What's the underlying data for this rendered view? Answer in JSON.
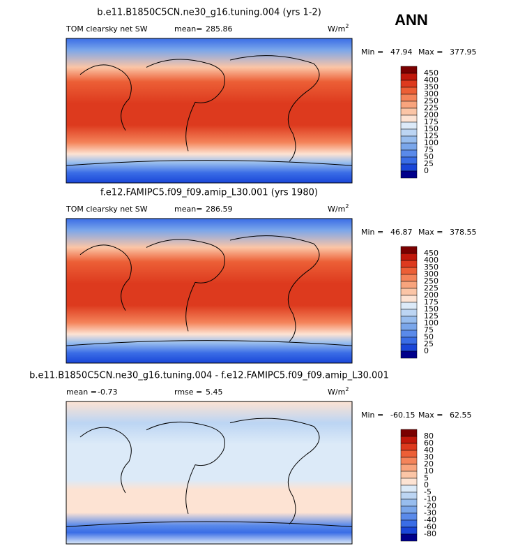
{
  "header": {
    "season": "ANN"
  },
  "panels": [
    {
      "title": "b.e11.B1850C5CN.ne30_g16.tuning.004 (yrs 1-2)",
      "variable": "TOM clearsky net SW",
      "stats": [
        {
          "label": "mean=",
          "value": "285.86"
        }
      ],
      "units": "W/m",
      "units_sup": "2",
      "min_label": "Min =",
      "min": "47.94",
      "max_label": "Max =",
      "max": "377.95",
      "colorbar": {
        "labels": [
          "450",
          "400",
          "350",
          "300",
          "250",
          "225",
          "200",
          "175",
          "150",
          "125",
          "100",
          "75",
          "50",
          "25",
          "0"
        ],
        "colors": [
          "#7a0000",
          "#c0180b",
          "#dd3a1e",
          "#ec5f36",
          "#f4845a",
          "#f8a47d",
          "#fbc5a6",
          "#fde3d3",
          "#dceaf8",
          "#bcd5f3",
          "#98bdee",
          "#7aa6ea",
          "#5a8aea",
          "#3a6de6",
          "#1a46d8",
          "#00008a"
        ]
      }
    },
    {
      "title": "f.e12.FAMIPC5.f09_f09.amip_L30.001 (yrs 1980)",
      "variable": "TOM clearsky net SW",
      "stats": [
        {
          "label": "mean=",
          "value": "286.59"
        }
      ],
      "units": "W/m",
      "units_sup": "2",
      "min_label": "Min =",
      "min": "46.87",
      "max_label": "Max =",
      "max": "378.55",
      "colorbar": {
        "labels": [
          "450",
          "400",
          "350",
          "300",
          "250",
          "225",
          "200",
          "175",
          "150",
          "125",
          "100",
          "75",
          "50",
          "25",
          "0"
        ],
        "colors": [
          "#7a0000",
          "#c0180b",
          "#dd3a1e",
          "#ec5f36",
          "#f4845a",
          "#f8a47d",
          "#fbc5a6",
          "#fde3d3",
          "#dceaf8",
          "#bcd5f3",
          "#98bdee",
          "#7aa6ea",
          "#5a8aea",
          "#3a6de6",
          "#1a46d8",
          "#00008a"
        ]
      }
    },
    {
      "title": "b.e11.B1850C5CN.ne30_g16.tuning.004 - f.e12.FAMIPC5.f09_f09.amip_L30.001",
      "variable": null,
      "stats": [
        {
          "label": "mean =",
          "value": "-0.73"
        },
        {
          "label": "rmse =",
          "value": "5.45"
        }
      ],
      "units": "W/m",
      "units_sup": "2",
      "min_label": "Min =",
      "min": "-60.15",
      "max_label": "Max =",
      "max": "62.55",
      "colorbar": {
        "labels": [
          "80",
          "60",
          "40",
          "30",
          "20",
          "10",
          "5",
          "0",
          "-5",
          "-10",
          "-20",
          "-30",
          "-40",
          "-60",
          "-80"
        ],
        "colors": [
          "#7a0000",
          "#c0180b",
          "#dd3a1e",
          "#ec5f36",
          "#f4845a",
          "#f8a47d",
          "#fbc5a6",
          "#fde3d3",
          "#dceaf8",
          "#bcd5f3",
          "#98bdee",
          "#7aa6ea",
          "#5a8aea",
          "#3a6de6",
          "#1a46d8",
          "#00008a"
        ]
      }
    }
  ]
}
